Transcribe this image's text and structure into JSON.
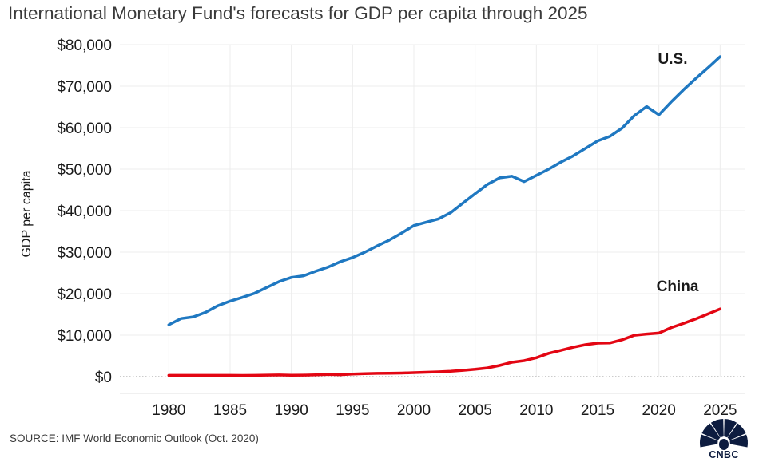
{
  "chart_data": {
    "type": "line",
    "title": "International Monetary Fund's forecasts for GDP per capita through 2025",
    "xlabel": "",
    "ylabel": "GDP per capita",
    "xlim": [
      1976,
      2027
    ],
    "ylim": [
      0,
      80000
    ],
    "x_ticks": [
      1980,
      1985,
      1990,
      1995,
      2000,
      2005,
      2010,
      2015,
      2020,
      2025
    ],
    "x_tick_labels": [
      "1980",
      "1985",
      "1990",
      "1995",
      "2000",
      "2005",
      "2010",
      "2015",
      "2020",
      "2025"
    ],
    "y_ticks": [
      0,
      10000,
      20000,
      30000,
      40000,
      50000,
      60000,
      70000,
      80000
    ],
    "y_tick_labels": [
      "$0",
      "$10,000",
      "$20,000",
      "$30,000",
      "$40,000",
      "$50,000",
      "$60,000",
      "$70,000",
      "$80,000"
    ],
    "grid": true,
    "x": [
      1980,
      1981,
      1982,
      1983,
      1984,
      1985,
      1986,
      1987,
      1988,
      1989,
      1990,
      1991,
      1992,
      1993,
      1994,
      1995,
      1996,
      1997,
      1998,
      1999,
      2000,
      2001,
      2002,
      2003,
      2004,
      2005,
      2006,
      2007,
      2008,
      2009,
      2010,
      2011,
      2012,
      2013,
      2014,
      2015,
      2016,
      2017,
      2018,
      2019,
      2020,
      2021,
      2022,
      2023,
      2024,
      2025
    ],
    "series": [
      {
        "name": "U.S.",
        "color": "#1f78c1",
        "values": [
          12500,
          14000,
          14400,
          15500,
          17100,
          18200,
          19100,
          20100,
          21500,
          22900,
          23900,
          24300,
          25400,
          26400,
          27700,
          28700,
          30000,
          31500,
          32900,
          34600,
          36400,
          37200,
          38000,
          39500,
          41800,
          44100,
          46300,
          47900,
          48300,
          47000,
          48500,
          50000,
          51700,
          53200,
          55000,
          56800,
          57900,
          59900,
          62900,
          65100,
          63100,
          66200,
          69100,
          71800,
          74400,
          77100
        ],
        "label_text": "U.S."
      },
      {
        "name": "China",
        "color": "#e30613",
        "values": [
          300,
          300,
          300,
          300,
          300,
          300,
          290,
          300,
          370,
          400,
          350,
          360,
          420,
          520,
          470,
          610,
          710,
          780,
          830,
          870,
          960,
          1050,
          1150,
          1290,
          1510,
          1760,
          2100,
          2690,
          3470,
          3840,
          4550,
          5610,
          6320,
          7080,
          7700,
          8070,
          8120,
          8880,
          9980,
          10260,
          10500,
          11800,
          12800,
          13900,
          15100,
          16300
        ],
        "label_text": "China"
      }
    ]
  },
  "source": "SOURCE: IMF World Economic Outlook (Oct. 2020)",
  "brand": {
    "name": "CNBC",
    "colors": [
      "#fcb711",
      "#f37021",
      "#cc004c",
      "#6460aa",
      "#0089d0",
      "#0db14b"
    ]
  }
}
